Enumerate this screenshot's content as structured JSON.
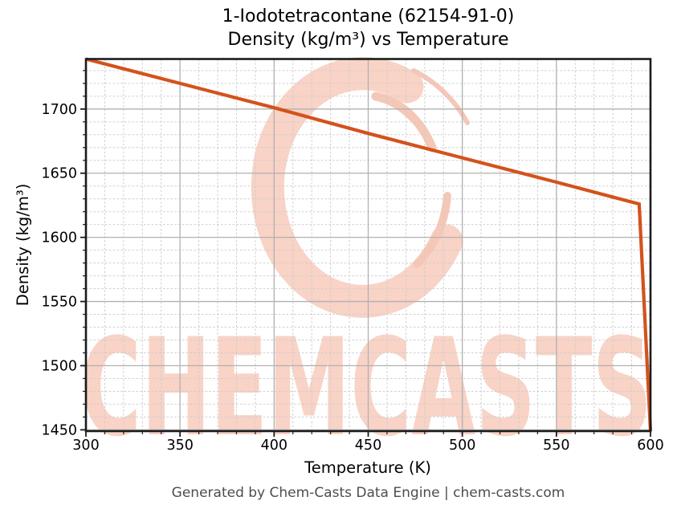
{
  "title": {
    "line1": "1-Iodotetracontane (62154-91-0)",
    "line2": "Density (kg/m³) vs Temperature"
  },
  "watermark": {
    "text": "CHEMCASTS",
    "logo": "chemcasts-c-ring-logo"
  },
  "footer": {
    "text": "Generated by Chem-Casts Data Engine | chem-casts.com"
  },
  "axes": {
    "x": {
      "label": "Temperature (K)",
      "min": 300,
      "max": 600,
      "major_ticks": [
        300,
        350,
        400,
        450,
        500,
        550,
        600
      ],
      "minor_step": 10
    },
    "y": {
      "label": "Density (kg/m³)",
      "min": 1449,
      "max": 1739,
      "major_ticks": [
        1450,
        1500,
        1550,
        1600,
        1650,
        1700
      ],
      "minor_step": 10
    }
  },
  "chart_data": {
    "type": "line",
    "title": "1-Iodotetracontane (62154-91-0) Density (kg/m³) vs Temperature",
    "xlabel": "Temperature (K)",
    "ylabel": "Density (kg/m³)",
    "xlim": [
      300,
      600
    ],
    "ylim": [
      1449,
      1739
    ],
    "grid": true,
    "legend": false,
    "series": [
      {
        "name": "Density",
        "color": "#d4521c",
        "x": [
          300,
          350,
          400,
          450,
          500,
          550,
          594,
          600
        ],
        "y": [
          1739,
          1720,
          1701,
          1681,
          1662,
          1643,
          1626,
          1449
        ]
      }
    ],
    "annotations": {
      "watermark_text": "CHEMCASTS"
    }
  },
  "colors": {
    "line": "#d4521c",
    "watermark": "#f8d3c6",
    "watermark_accent": "#f5c7b6",
    "grid_major": "#b1b1b1",
    "grid_minor": "#cdcdcd",
    "spine": "#1b1b1b",
    "tick": "#1b1b1b",
    "title_text": "#000000",
    "footer_text": "#4d4d4d"
  }
}
